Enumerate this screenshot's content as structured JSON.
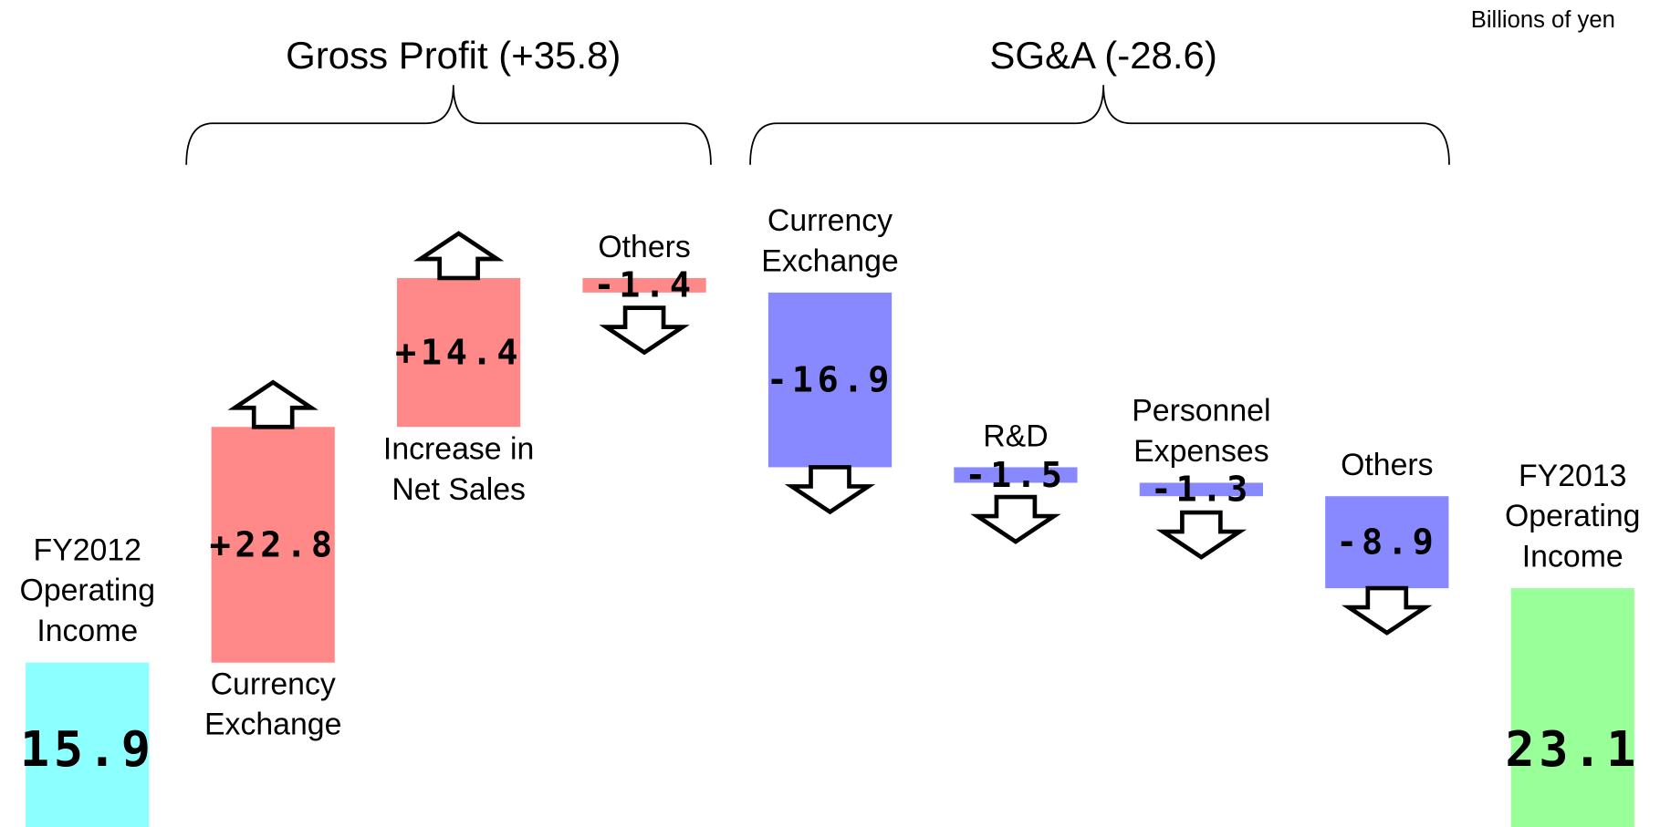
{
  "chart_data": {
    "type": "waterfall",
    "unit_label": "Billions of yen",
    "groups": [
      "Gross Profit (+35.8)",
      "SG&A (-28.6)"
    ],
    "categories": [
      "FY2012 Operating Income",
      "Currency Exchange",
      "Increase in Net Sales",
      "Others",
      "Currency Exchange",
      "R&D",
      "Personnel Expenses",
      "Others",
      "FY2013 Operating Income"
    ],
    "measure": [
      "absolute",
      "relative",
      "relative",
      "relative",
      "relative",
      "relative",
      "relative",
      "relative",
      "total"
    ],
    "values": [
      15.9,
      22.8,
      14.4,
      -1.4,
      -16.9,
      -1.5,
      -1.3,
      -8.9,
      23.1
    ],
    "value_labels": [
      "15.9",
      "+22.8",
      "+14.4",
      "-1.4",
      "-16.9",
      "-1.5",
      "-1.3",
      "-8.9",
      "23.1"
    ],
    "colors": [
      "#8cffff",
      "#ff8888",
      "#ff8888",
      "#ff8888",
      "#8888ff",
      "#8888ff",
      "#8888ff",
      "#8888ff",
      "#99ff99"
    ],
    "ylim": [
      0,
      80
    ]
  }
}
